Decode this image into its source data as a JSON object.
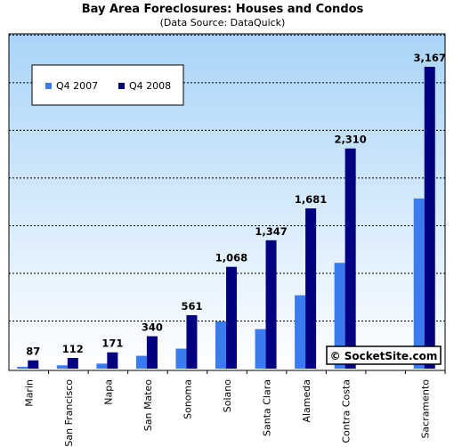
{
  "chart_data": {
    "type": "bar",
    "title": "Bay Area Foreclosures: Houses and Condos",
    "subtitle": "(Data Source: DataQuick)",
    "categories": [
      "Marin",
      "San Francisco",
      "Napa",
      "San Mateo",
      "Sonoma",
      "Solano",
      "Santa Clara",
      "Alameda",
      "Contra Costa",
      "",
      "Sacramento"
    ],
    "series": [
      {
        "name": "Q4 2007",
        "color": "#3a7bf0",
        "values": [
          20,
          35,
          53,
          135,
          210,
          495,
          415,
          770,
          1110,
          null,
          1785
        ]
      },
      {
        "name": "Q4 2008",
        "color": "#000080",
        "values": [
          87,
          112,
          171,
          340,
          561,
          1068,
          1347,
          1681,
          2310,
          null,
          3167
        ]
      }
    ],
    "data_labels": [
      "87",
      "112",
      "171",
      "340",
      "561",
      "1,068",
      "1,347",
      "1,681",
      "2,310",
      "",
      "3,167"
    ],
    "ylim": [
      0,
      3500
    ],
    "gridlines": [
      500,
      1000,
      1500,
      2000,
      2500,
      3000,
      3500
    ],
    "legend_position": "top-left",
    "background_gradient": [
      "#a9d4f8",
      "#ffffff"
    ]
  },
  "watermark": "© SocketSite.com"
}
